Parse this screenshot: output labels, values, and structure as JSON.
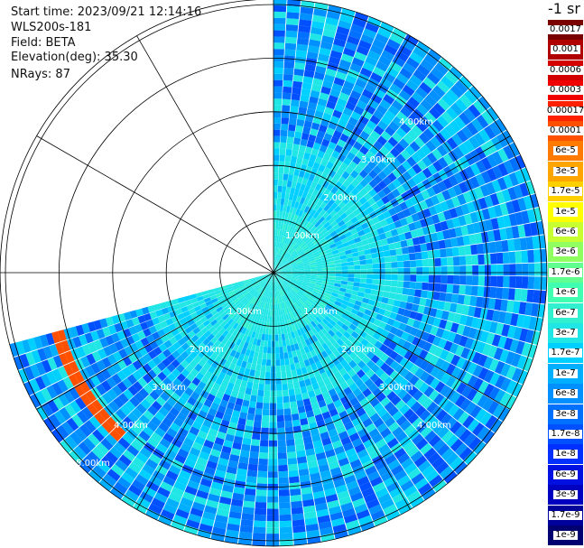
{
  "header": {
    "start_time": "Start time: 2023/09/21 12:14:16",
    "instrument": "WLS200s-181",
    "field": "Field: BETA",
    "elevation": "Elevation(deg): 35.30",
    "nrays": "NRays: 87"
  },
  "colorbar": {
    "units_label": "-1 sr",
    "bins": [
      {
        "label": "0.0017",
        "color": "#7a0000"
      },
      {
        "label": "0.001",
        "color": "#b00000"
      },
      {
        "label": "0.0006",
        "color": "#d40000"
      },
      {
        "label": "0.0003",
        "color": "#f00000"
      },
      {
        "label": "0.00017",
        "color": "#ff2000"
      },
      {
        "label": "0.0001",
        "color": "#ff5000"
      },
      {
        "label": "6e-5",
        "color": "#ff7a00"
      },
      {
        "label": "3e-5",
        "color": "#ffa500"
      },
      {
        "label": "1.7e-5",
        "color": "#ffd000"
      },
      {
        "label": "1e-5",
        "color": "#ffff00"
      },
      {
        "label": "6e-6",
        "color": "#c8ff30"
      },
      {
        "label": "3e-6",
        "color": "#90ff60"
      },
      {
        "label": "1.7e-6",
        "color": "#60ff90"
      },
      {
        "label": "1e-6",
        "color": "#40ffb0"
      },
      {
        "label": "6e-7",
        "color": "#30f0d0"
      },
      {
        "label": "3e-7",
        "color": "#20e6e6"
      },
      {
        "label": "1.7e-7",
        "color": "#00d0ff"
      },
      {
        "label": "1e-7",
        "color": "#00b0ff"
      },
      {
        "label": "6e-8",
        "color": "#0090ff"
      },
      {
        "label": "3e-8",
        "color": "#0070ff"
      },
      {
        "label": "1.7e-8",
        "color": "#0050ff"
      },
      {
        "label": "1e-8",
        "color": "#0030ff"
      },
      {
        "label": "6e-9",
        "color": "#0010e0"
      },
      {
        "label": "3e-9",
        "color": "#0000c0"
      },
      {
        "label": "1.7e-9",
        "color": "#00009a"
      },
      {
        "label": "1e-9",
        "color": "#000070"
      }
    ]
  },
  "chart_data": {
    "type": "heatmap",
    "projection": "PPI polar",
    "field": "BETA",
    "elevation_deg": 35.3,
    "nrays": 87,
    "range_rings_km": [
      1,
      2,
      3,
      4,
      5
    ],
    "range_labels_upper": [
      "4.00km",
      "3.00km",
      "2.00km",
      "1.00km"
    ],
    "range_labels_lower": [
      "1.00km",
      "2.00km",
      "3.00km",
      "4.00km",
      "5.00km"
    ],
    "range_labels_right": [
      "1.00km",
      "2.00km",
      "3.00km",
      "4.00km"
    ],
    "max_range_km": 5.1,
    "sector_azimuth_deg": [
      0,
      255
    ],
    "spokes_deg": [
      0,
      30,
      60,
      90,
      120,
      150,
      180,
      210,
      240,
      270,
      300,
      330
    ],
    "typical_value_near": "1e-7",
    "typical_value_far": "6e-8",
    "feature": {
      "description": "aerosol layer",
      "azimuth_deg": [
        222,
        254
      ],
      "range_km": [
        4.1,
        4.4
      ],
      "peak_value": "1e-5"
    }
  }
}
